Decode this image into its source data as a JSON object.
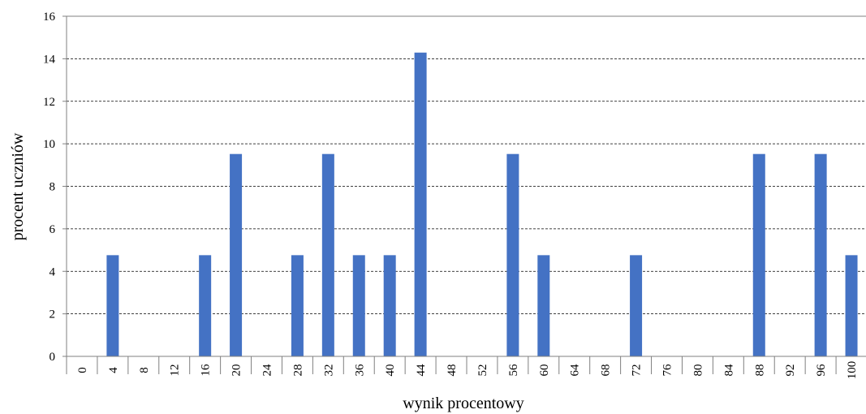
{
  "chart_data": {
    "type": "bar",
    "xlabel": "wynik procentowy",
    "ylabel": "procent uczniów",
    "ylim": [
      0,
      16
    ],
    "y_ticks": [
      "0",
      "2",
      "4",
      "6",
      "8",
      "10",
      "12",
      "14",
      "16"
    ],
    "grid": "horizontal dashed",
    "legend": "none",
    "colors": {
      "bar": "#4472C4",
      "grid": "#000000",
      "axis": "#808080"
    },
    "categories": [
      "0",
      "4",
      "8",
      "12",
      "16",
      "20",
      "24",
      "28",
      "32",
      "36",
      "40",
      "44",
      "48",
      "52",
      "56",
      "60",
      "64",
      "68",
      "72",
      "76",
      "80",
      "84",
      "88",
      "92",
      "96",
      "100"
    ],
    "values": [
      0,
      4.76,
      0,
      0,
      4.76,
      9.52,
      0,
      4.76,
      9.52,
      4.76,
      4.76,
      14.29,
      0,
      0,
      9.52,
      4.76,
      0,
      0,
      4.76,
      0,
      0,
      0,
      9.52,
      0,
      9.52,
      4.76
    ]
  }
}
